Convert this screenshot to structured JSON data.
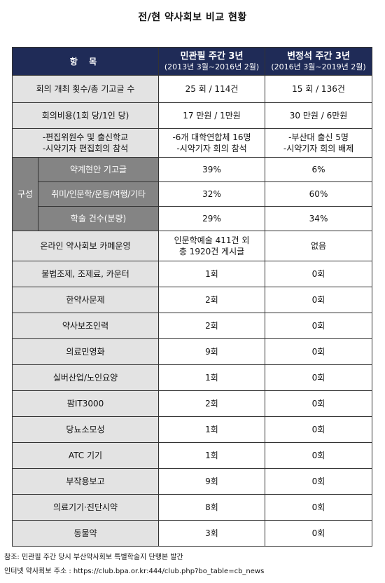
{
  "title": "전/현 약사회보 비교 현황",
  "header": {
    "item": "항 목",
    "col1_main": "민관필 주간 3년",
    "col1_sub": "(2013년 3월~2016년 2월)",
    "col2_main": "변정석 주간 3년",
    "col2_sub": "(2016년 3월~2019년 2월)"
  },
  "rows": {
    "meetings": {
      "label": "회의 개최 횟수/총 기고글 수",
      "col1": "25 회 / 114건",
      "col2": "15 회 / 136건"
    },
    "cost": {
      "label": "회의비용(1회 당/1인 당)",
      "col1": "17 만원  /  1만원",
      "col2": "30 만원 / 6만원"
    },
    "committee": {
      "label1": "-편집위원수 및 출신학교",
      "label2": "-시약기자 편집회의 참석",
      "col1_1": "-6개 대학연합체 16명",
      "col1_2": "-시약기자 회의 참석",
      "col2_1": "-부산대 출신 5명",
      "col2_2": "-시약기자 회의 배제"
    },
    "composition": {
      "group_label": "구성",
      "items": [
        {
          "label": "약계현안 기고글",
          "col1": "39%",
          "col2": "6%"
        },
        {
          "label": "취미/인문학/운동/여행/기타",
          "col1": "32%",
          "col2": "60%"
        },
        {
          "label": "학술 건수(분량)",
          "col1": "29%",
          "col2": "34%"
        }
      ]
    },
    "cafe": {
      "label": "온라인 약사회보 카페운영",
      "col1_1": "인문학예술 411건 외",
      "col1_2": "총 1920건 게시글",
      "col2": "없음"
    },
    "topics": [
      {
        "label": "불법조제, 조제료, 카운터",
        "col1": "1회",
        "col2": "0회"
      },
      {
        "label": "한약사문제",
        "col1": "2회",
        "col2": "0회"
      },
      {
        "label": "약사보조인력",
        "col1": "2회",
        "col2": "0회"
      },
      {
        "label": "의료민영화",
        "col1": "9회",
        "col2": "0회"
      },
      {
        "label": "실버산업/노인요양",
        "col1": "1회",
        "col2": "0회"
      },
      {
        "label": "팜IT3000",
        "col1": "2회",
        "col2": "0회"
      },
      {
        "label": "당뇨소모성",
        "col1": "1회",
        "col2": "0회"
      },
      {
        "label": "ATC 기기",
        "col1": "1회",
        "col2": "0회"
      },
      {
        "label": "부작용보고",
        "col1": "9회",
        "col2": "0회"
      },
      {
        "label": "의료기기·진단시약",
        "col1": "8회",
        "col2": "0회"
      },
      {
        "label": "동물약",
        "col1": "3회",
        "col2": "0회"
      }
    ]
  },
  "notes": {
    "line1": "참조: 민관필 주간 당시 부산약사회보 특별학술지 단행본 발간",
    "line2": "인터넷 약사회보 주소 : https://club.bpa.or.kr:444/club.php?bo_table=cb_news"
  }
}
